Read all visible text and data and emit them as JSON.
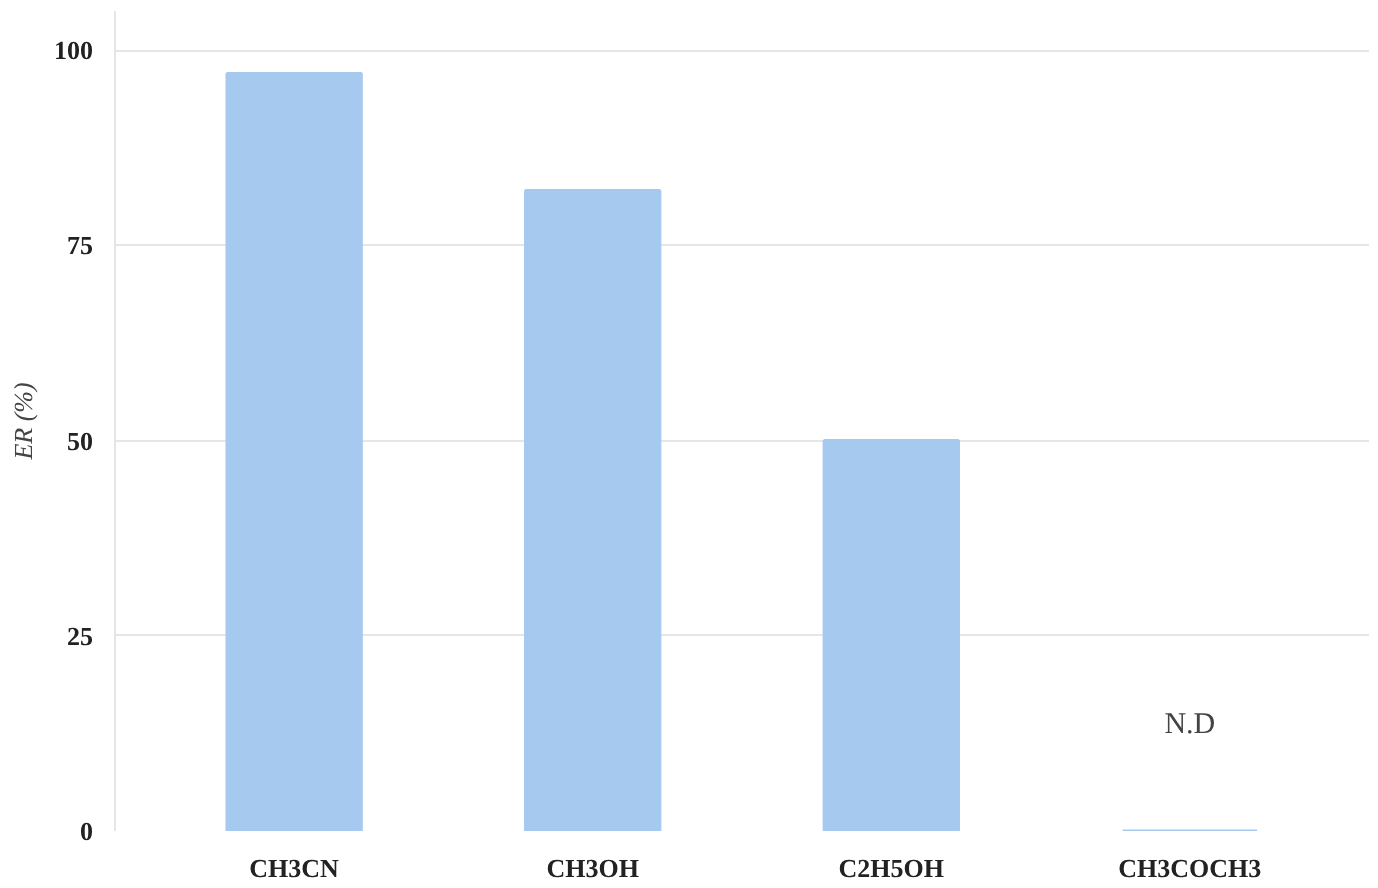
{
  "chart_data": {
    "type": "bar",
    "ylabel": "ER (%)",
    "categories": [
      "CH3CN",
      "CH3OH",
      "C2H5OH",
      "CH3COCH3"
    ],
    "values": [
      97,
      82,
      50,
      0
    ],
    "color": "#a6c9ef",
    "ylim": [
      0,
      105
    ],
    "yticks": [
      0,
      25,
      50,
      75,
      100
    ],
    "grid": "y",
    "annotations": [
      {
        "text": "N.D",
        "x": "CH3COCH3",
        "y": 0
      }
    ]
  }
}
